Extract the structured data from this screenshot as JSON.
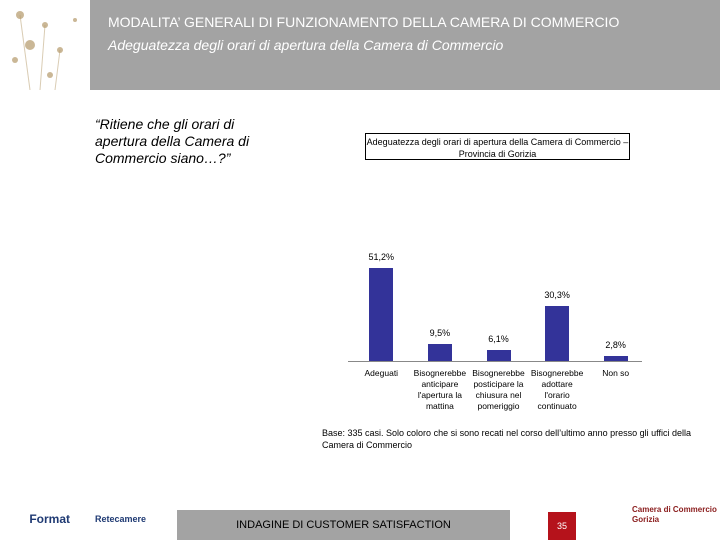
{
  "header": {
    "title": "MODALITA’ GENERALI DI FUNZIONAMENTO DELLA CAMERA DI COMMERCIO",
    "subtitle": "Adeguatezza degli orari di apertura della Camera di Commercio"
  },
  "question": "“Ritiene che gli orari di apertura della Camera di Commercio siano…?”",
  "chart_data": {
    "type": "bar",
    "title": "Adeguatezza degli orari di apertura della Camera di Commercio – Provincia di Gorizia",
    "categories": [
      "Adeguati",
      "Bisognerebbe anticipare l'apertura la mattina",
      "Bisognerebbe posticipare la chiusura nel pomeriggio",
      "Bisognerebbe adottare l'orario continuato",
      "Non so"
    ],
    "values": [
      51.2,
      9.5,
      6.1,
      30.3,
      2.8
    ],
    "value_labels": [
      "51,2%",
      "9,5%",
      "6,1%",
      "30,3%",
      "2,8%"
    ],
    "color": "#333399"
  },
  "note": "Base: 335 casi. Solo coloro che si sono recati nel corso dell’ultimo anno presso gli uffici della Camera di Commercio",
  "footer": {
    "logo_left": "Format",
    "logo_mid": "Retecamere",
    "label": "INDAGINE DI CUSTOMER SATISFACTION",
    "page": 35,
    "logo_right": [
      "Camera di Commercio",
      "Gorizia"
    ]
  }
}
